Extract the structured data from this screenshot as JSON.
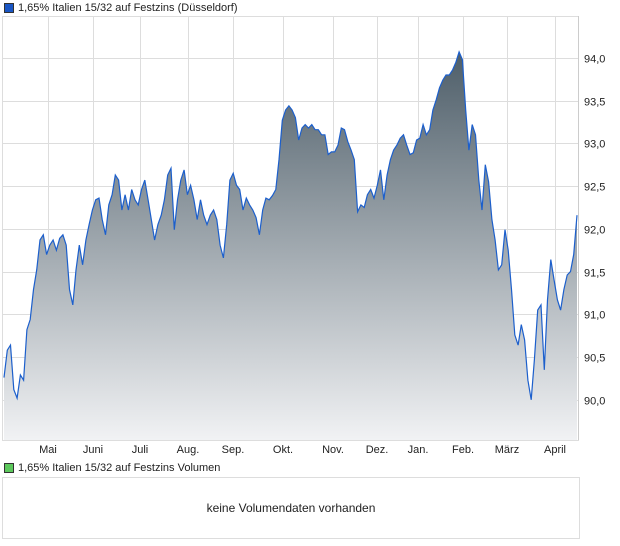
{
  "chart_data": {
    "type": "area",
    "title": "1,65% Italien 15/32 auf Festzins (Düsseldorf)",
    "xlabel": "",
    "ylabel": "",
    "x_tick_labels": [
      "Mai",
      "Juni",
      "Juli",
      "Aug.",
      "Sep.",
      "Okt.",
      "Nov.",
      "Dez.",
      "Jan.",
      "Feb.",
      "März",
      "April"
    ],
    "y_ticks": [
      90.0,
      90.5,
      91.0,
      91.5,
      92.0,
      92.5,
      93.0,
      93.5,
      94.0
    ],
    "y_tick_labels": [
      "90,0",
      "90,5",
      "91,0",
      "91,5",
      "92,0",
      "92,5",
      "93,0",
      "93,5",
      "94,0"
    ],
    "ylim": [
      89.53,
      94.49
    ],
    "grid": true,
    "series": [
      {
        "name": "1,65% Italien 15/32 auf Festzins (Düsseldorf)",
        "values": [
          90.26,
          90.58,
          90.64,
          90.12,
          90.02,
          90.29,
          90.23,
          90.82,
          90.94,
          91.29,
          91.52,
          91.87,
          91.93,
          91.7,
          91.81,
          91.87,
          91.75,
          91.89,
          91.93,
          91.81,
          91.29,
          91.11,
          91.52,
          91.81,
          91.58,
          91.87,
          92.05,
          92.22,
          92.34,
          92.36,
          92.11,
          91.93,
          92.28,
          92.4,
          92.63,
          92.57,
          92.22,
          92.4,
          92.22,
          92.46,
          92.34,
          92.28,
          92.46,
          92.57,
          92.34,
          92.11,
          91.87,
          92.05,
          92.16,
          92.34,
          92.63,
          92.71,
          91.99,
          92.34,
          92.57,
          92.69,
          92.4,
          92.51,
          92.34,
          92.11,
          92.34,
          92.16,
          92.05,
          92.16,
          92.22,
          92.11,
          91.81,
          91.66,
          92.05,
          92.57,
          92.65,
          92.51,
          92.46,
          92.22,
          92.36,
          92.28,
          92.22,
          92.13,
          91.93,
          92.22,
          92.36,
          92.34,
          92.39,
          92.46,
          92.81,
          93.27,
          93.39,
          93.44,
          93.39,
          93.3,
          93.04,
          93.18,
          93.22,
          93.18,
          93.22,
          93.16,
          93.16,
          93.1,
          93.1,
          92.87,
          92.9,
          92.9,
          92.98,
          93.18,
          93.16,
          93.02,
          92.92,
          92.81,
          92.2,
          92.28,
          92.25,
          92.4,
          92.46,
          92.36,
          92.51,
          92.69,
          92.34,
          92.63,
          92.81,
          92.92,
          92.98,
          93.06,
          93.1,
          92.98,
          92.87,
          92.89,
          93.04,
          93.06,
          93.22,
          93.1,
          93.16,
          93.39,
          93.51,
          93.65,
          93.74,
          93.8,
          93.8,
          93.86,
          93.95,
          94.07,
          93.98,
          93.39,
          92.92,
          93.22,
          93.1,
          92.57,
          92.22,
          92.75,
          92.55,
          92.11,
          91.87,
          91.52,
          91.58,
          91.99,
          91.75,
          91.29,
          90.76,
          90.64,
          90.88,
          90.7,
          90.23,
          90.0,
          90.47,
          91.05,
          91.11,
          90.35,
          91.17,
          91.64,
          91.4,
          91.17,
          91.05,
          91.29,
          91.46,
          91.5,
          91.7,
          92.16
        ]
      }
    ],
    "colors": {
      "line": "#1c5fcc",
      "fill_top": "#4e5e69",
      "fill_bottom": "#f1f2f4",
      "legend_price": "#1a56c4",
      "legend_volume": "#5cc85c"
    }
  },
  "volume": {
    "legend": "1,65% Italien 15/32 auf Festzins Volumen",
    "message": "keine Volumendaten vorhanden"
  }
}
